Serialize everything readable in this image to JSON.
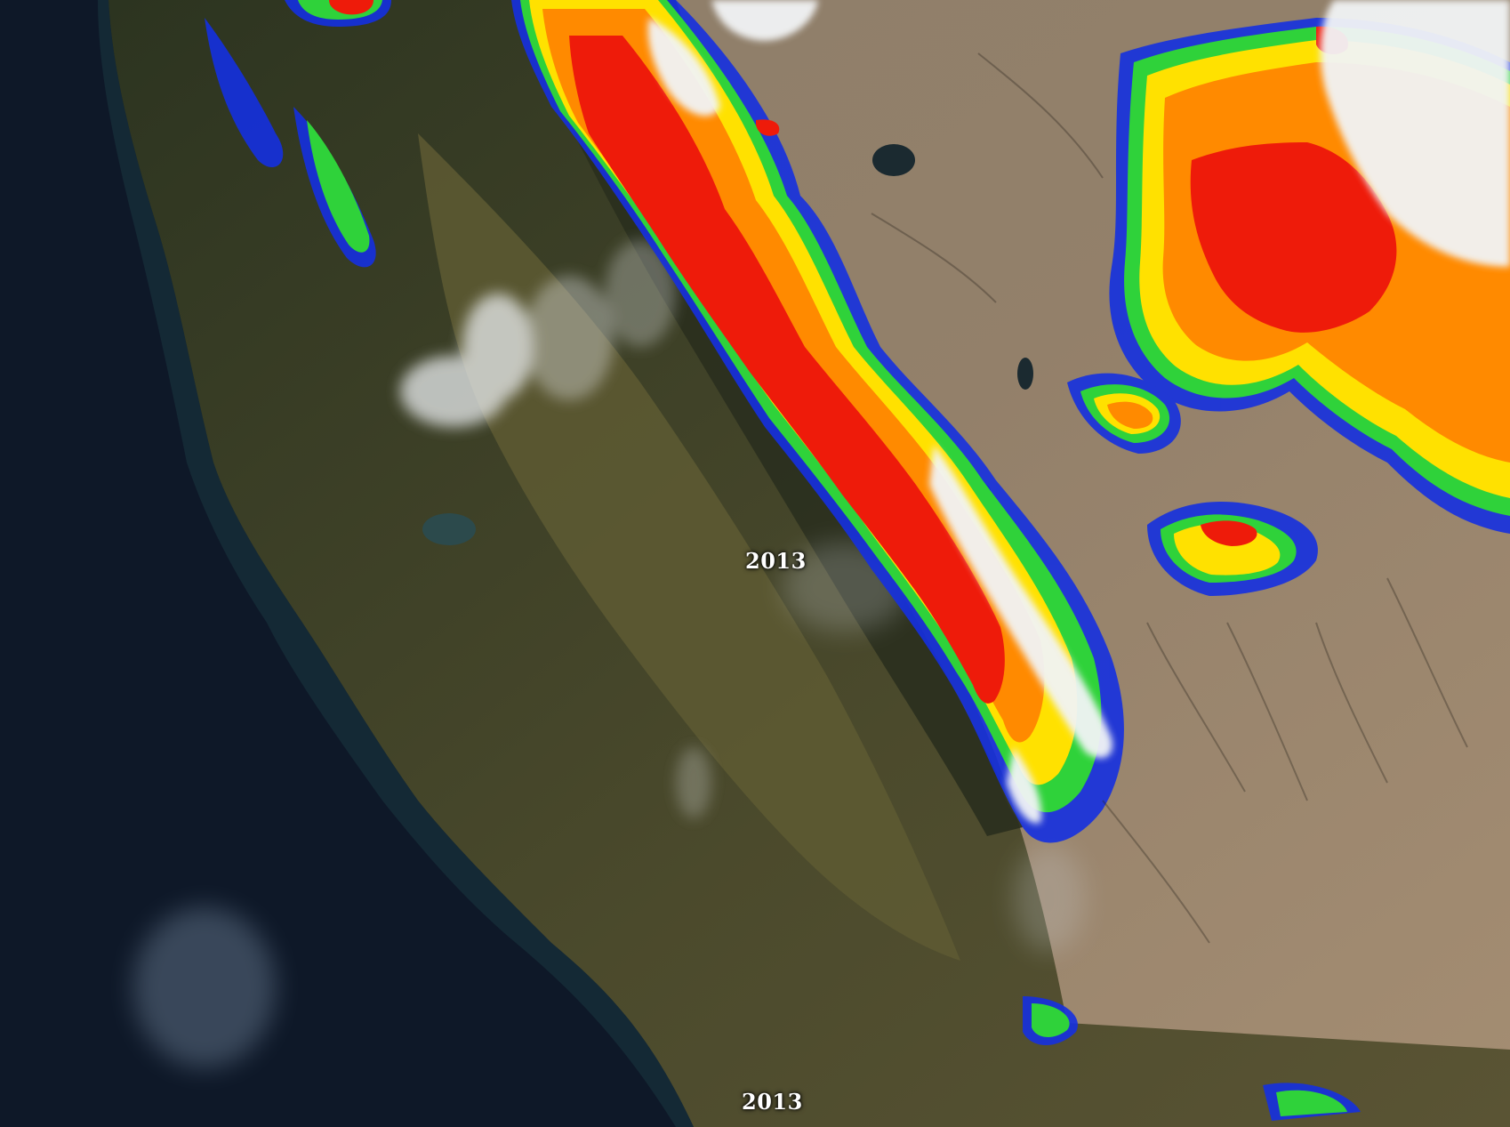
{
  "map": {
    "year_label": "2013",
    "caption_label": "2013",
    "colors": {
      "ocean": "#0e1828",
      "coast_vegetation": "#2f3a22",
      "valley": "#58552f",
      "desert": "#8f7e67",
      "snow_red": "#ee1b0a",
      "snow_orange": "#ff8a00",
      "snow_yellow": "#ffe100",
      "snow_green": "#2fd23a",
      "snow_cyan": "#22c8e6",
      "snow_blue": "#1530e0",
      "cloud": "#f2f4f6"
    }
  }
}
